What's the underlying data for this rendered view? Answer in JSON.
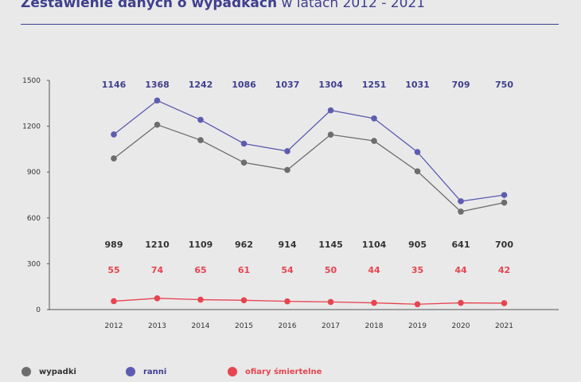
{
  "title": {
    "bold_part": "Zestawienie danych o wypadkach",
    "rest": " w latach 2012 - 2021"
  },
  "colors": {
    "wypadki": "#6d6d6d",
    "ranni": "#5c5cb0",
    "ofiary": "#e64550",
    "ranni_label": "#3f3f8f",
    "wypadki_label": "#333333",
    "ofiary_label": "#e64550"
  },
  "legend": [
    {
      "key": "wypadki",
      "label": "wypadki"
    },
    {
      "key": "ranni",
      "label": "ranni"
    },
    {
      "key": "ofiary",
      "label": "ofiary  śmiertelne"
    }
  ],
  "chart_data": {
    "type": "line",
    "categories": [
      "2012",
      "2013",
      "2014",
      "2015",
      "2016",
      "2017",
      "2018",
      "2019",
      "2020",
      "2021"
    ],
    "series": [
      {
        "name": "wypadki",
        "values": [
          989,
          1210,
          1109,
          962,
          914,
          1145,
          1104,
          905,
          641,
          700
        ]
      },
      {
        "name": "ranni",
        "values": [
          1146,
          1368,
          1242,
          1086,
          1037,
          1304,
          1251,
          1031,
          709,
          750
        ]
      },
      {
        "name": "ofiary  śmiertelne",
        "values": [
          55,
          74,
          65,
          61,
          54,
          50,
          44,
          35,
          44,
          42
        ]
      }
    ],
    "yticks": [
      0,
      300,
      600,
      900,
      1200,
      1500
    ],
    "ylim": [
      0,
      1500
    ],
    "grid": false,
    "legend_position": "bottom"
  }
}
